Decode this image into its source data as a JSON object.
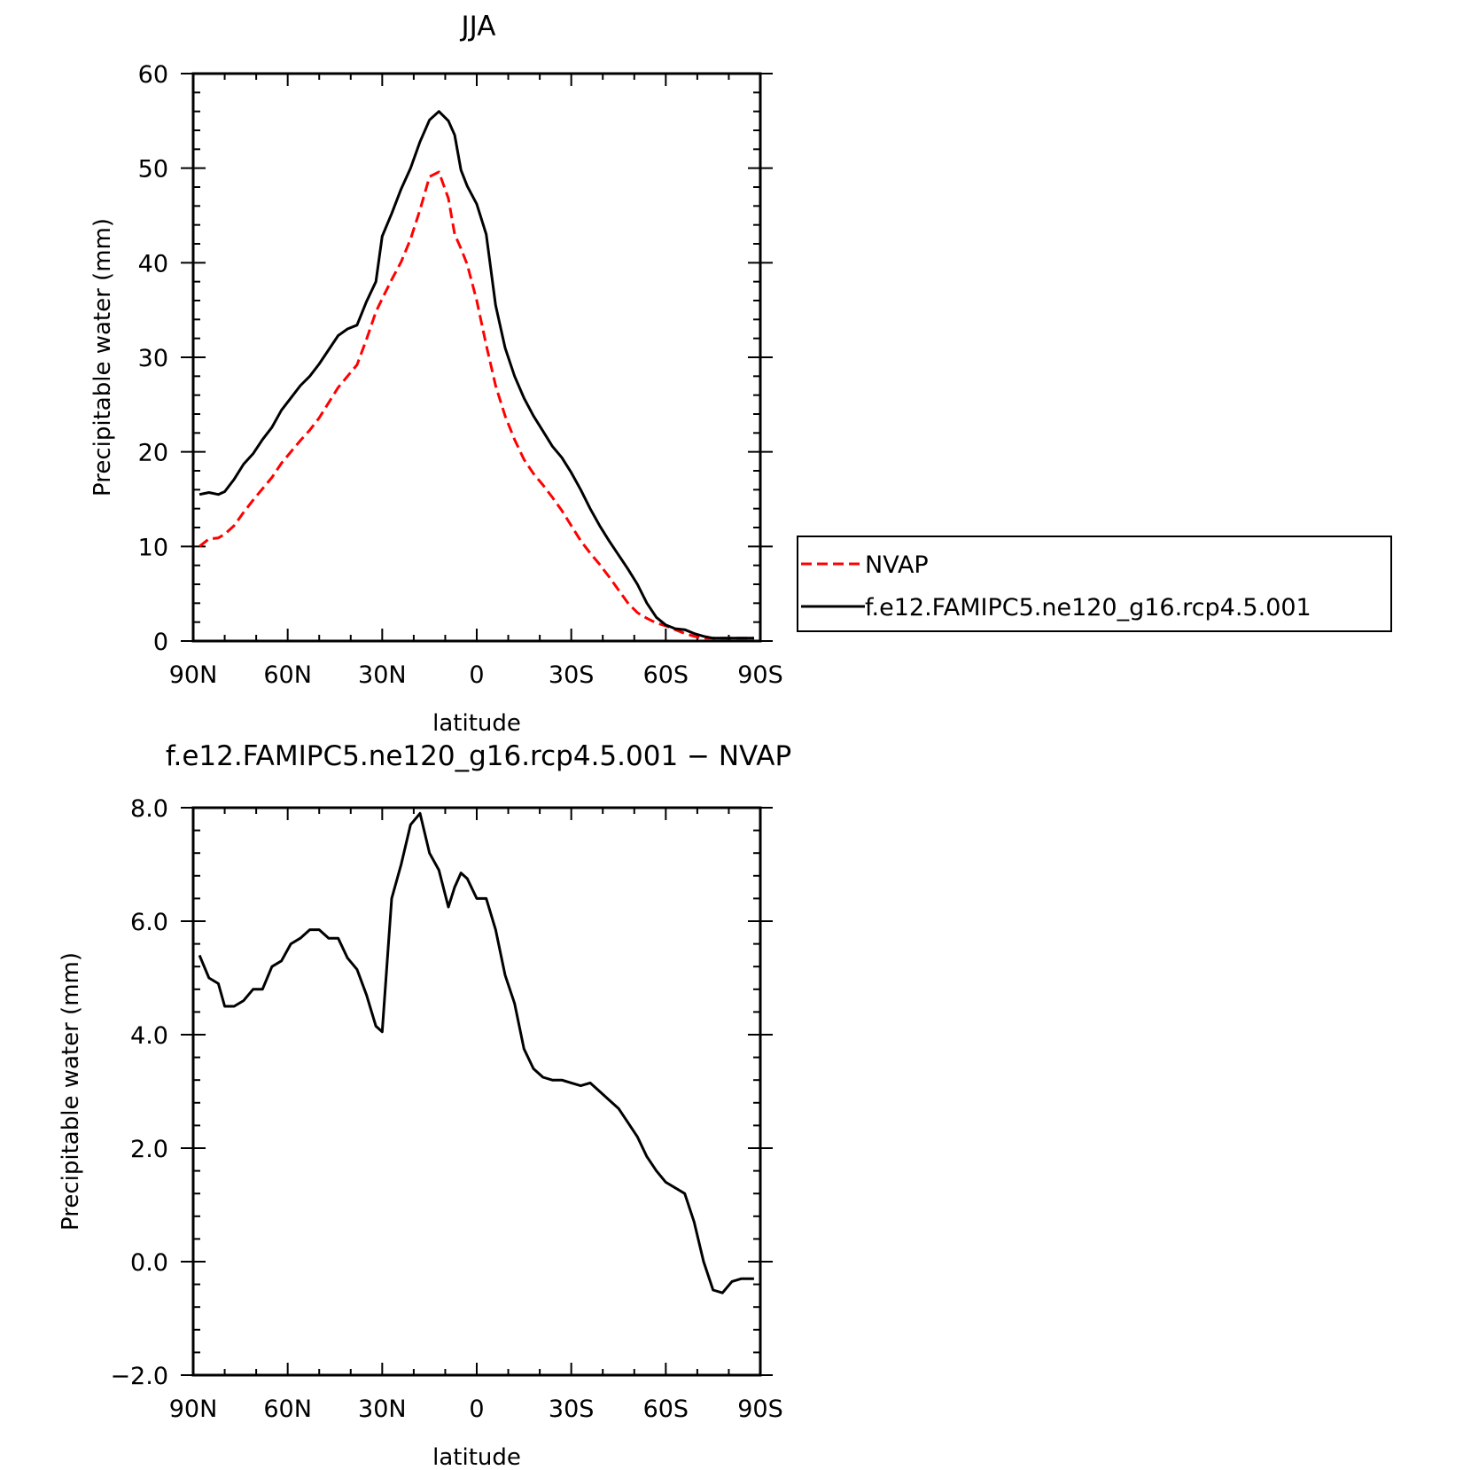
{
  "legend": {
    "entries": [
      {
        "label": "NVAP",
        "color": "#ff0000",
        "dash": true
      },
      {
        "label": "f.e12.FAMIPC5.ne120_g16.rcp4.5.001",
        "color": "#000000",
        "dash": false
      }
    ]
  },
  "chart_data": [
    {
      "type": "line",
      "title": "JJA",
      "xlabel": "latitude",
      "ylabel": "Precipitable water (mm)",
      "xlim": [
        90,
        -90
      ],
      "ylim": [
        0,
        60
      ],
      "xticks": [
        90,
        60,
        30,
        0,
        -30,
        -60,
        -90
      ],
      "xtick_labels": [
        "90N",
        "60N",
        "30N",
        "0",
        "30S",
        "60S",
        "90S"
      ],
      "yticks": [
        0,
        10,
        20,
        30,
        40,
        50,
        60
      ],
      "ytick_labels": [
        "0",
        "10",
        "20",
        "30",
        "40",
        "50",
        "60"
      ],
      "x": [
        88,
        85,
        82,
        80,
        77,
        74,
        71,
        68,
        65,
        62,
        59,
        56,
        53,
        50,
        47,
        44,
        41,
        38,
        35,
        32,
        30,
        27,
        24,
        21,
        18,
        15,
        12,
        9,
        7,
        5,
        3,
        0,
        -3,
        -6,
        -9,
        -12,
        -15,
        -18,
        -21,
        -24,
        -27,
        -30,
        -33,
        -36,
        -39,
        -42,
        -45,
        -48,
        -51,
        -54,
        -57,
        -60,
        -63,
        -66,
        -69,
        -72,
        -75,
        -78,
        -81,
        -84,
        -88
      ],
      "series": [
        {
          "name": "NVAP",
          "color": "#ff0000",
          "dash": true,
          "values": [
            10.0,
            10.8,
            10.9,
            11.3,
            12.2,
            13.6,
            14.9,
            16.1,
            17.3,
            18.8,
            20.0,
            21.2,
            22.3,
            23.6,
            25.2,
            26.8,
            28.0,
            29.2,
            31.9,
            34.8,
            36.2,
            38.2,
            40.1,
            42.5,
            45.6,
            49.1,
            49.6,
            46.8,
            43.0,
            41.5,
            39.8,
            36.0,
            31.3,
            27.0,
            23.8,
            21.3,
            19.2,
            17.7,
            16.5,
            15.2,
            13.8,
            12.2,
            10.6,
            9.3,
            8.1,
            6.8,
            5.4,
            4.0,
            3.0,
            2.4,
            1.9,
            1.6,
            1.2,
            0.8,
            0.5,
            0.3,
            0.3,
            0.3,
            0.3,
            0.3,
            0.3
          ]
        },
        {
          "name": "f.e12.FAMIPC5.ne120_g16.rcp4.5.001",
          "color": "#000000",
          "dash": false,
          "values": [
            15.5,
            15.7,
            15.5,
            15.8,
            17.1,
            18.7,
            19.8,
            21.3,
            22.6,
            24.4,
            25.7,
            27.0,
            28.0,
            29.3,
            30.8,
            32.3,
            33.0,
            33.4,
            35.9,
            38.0,
            42.8,
            45.2,
            47.8,
            50.0,
            52.8,
            55.1,
            56.0,
            55.0,
            53.5,
            49.8,
            48.1,
            46.2,
            43.0,
            35.5,
            31.0,
            28.0,
            25.7,
            23.8,
            22.2,
            20.6,
            19.4,
            17.8,
            16.0,
            14.0,
            12.2,
            10.6,
            9.1,
            7.6,
            6.0,
            4.0,
            2.5,
            1.7,
            1.3,
            1.2,
            0.8,
            0.5,
            0.3,
            0.3,
            0.3,
            0.3,
            0.3
          ]
        }
      ]
    },
    {
      "type": "line",
      "title": "f.e12.FAMIPC5.ne120_g16.rcp4.5.001 − NVAP",
      "xlabel": "latitude",
      "ylabel": "Precipitable water (mm)",
      "xlim": [
        90,
        -90
      ],
      "ylim": [
        -2,
        8
      ],
      "xticks": [
        90,
        60,
        30,
        0,
        -30,
        -60,
        -90
      ],
      "xtick_labels": [
        "90N",
        "60N",
        "30N",
        "0",
        "30S",
        "60S",
        "90S"
      ],
      "yticks": [
        -2,
        0,
        2,
        4,
        6,
        8
      ],
      "ytick_labels": [
        "−2.0",
        "0.0",
        "2.0",
        "4.0",
        "6.0",
        "8.0"
      ],
      "x": [
        88,
        85,
        82,
        80,
        77,
        74,
        71,
        68,
        65,
        62,
        59,
        56,
        53,
        50,
        47,
        44,
        41,
        38,
        35,
        32,
        30,
        27,
        24,
        21,
        18,
        15,
        12,
        9,
        7,
        5,
        3,
        0,
        -3,
        -6,
        -9,
        -12,
        -15,
        -18,
        -21,
        -24,
        -27,
        -30,
        -33,
        -36,
        -39,
        -42,
        -45,
        -48,
        -51,
        -54,
        -57,
        -60,
        -63,
        -66,
        -69,
        -72,
        -75,
        -78,
        -81,
        -84,
        -88
      ],
      "series": [
        {
          "name": "f.e12.FAMIPC5.ne120_g16.rcp4.5.001 − NVAP",
          "color": "#000000",
          "dash": false,
          "values": [
            5.4,
            5.0,
            4.9,
            4.5,
            4.5,
            4.6,
            4.8,
            4.8,
            5.2,
            5.3,
            5.6,
            5.7,
            5.85,
            5.85,
            5.7,
            5.7,
            5.35,
            5.15,
            4.7,
            4.15,
            4.05,
            6.4,
            7.0,
            7.7,
            7.9,
            7.2,
            6.9,
            6.25,
            6.6,
            6.85,
            6.75,
            6.4,
            6.4,
            5.85,
            5.05,
            4.55,
            3.75,
            3.4,
            3.25,
            3.2,
            3.2,
            3.15,
            3.1,
            3.15,
            3.0,
            2.85,
            2.7,
            2.45,
            2.2,
            1.85,
            1.6,
            1.4,
            1.3,
            1.2,
            0.7,
            0.0,
            -0.5,
            -0.55,
            -0.35,
            -0.3,
            -0.3
          ]
        }
      ]
    }
  ]
}
